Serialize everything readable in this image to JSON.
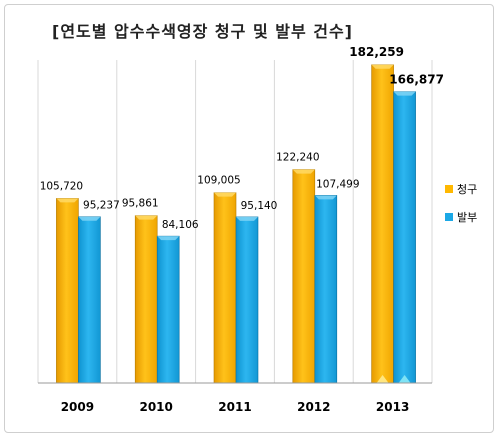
{
  "chart_data": {
    "type": "bar",
    "title": "[연도별 압수수색영장 청구 및 발부 건수]",
    "categories": [
      "2009",
      "2010",
      "2011",
      "2012",
      "2013"
    ],
    "series": [
      {
        "name": "청구",
        "color": "#FFB800",
        "values": [
          105720,
          95861,
          109005,
          122240,
          182259
        ],
        "labels": [
          "105,720",
          "95,861",
          "109,005",
          "122,240",
          "182,259"
        ]
      },
      {
        "name": "발부",
        "color": "#1BA8E6",
        "values": [
          95237,
          84106,
          95140,
          107499,
          166877
        ],
        "labels": [
          "95,237",
          "84,106",
          "95,140",
          "107,499",
          "166,877"
        ]
      }
    ],
    "ylim": [
      0,
      185000
    ],
    "grid": true,
    "legend_position": "right"
  }
}
